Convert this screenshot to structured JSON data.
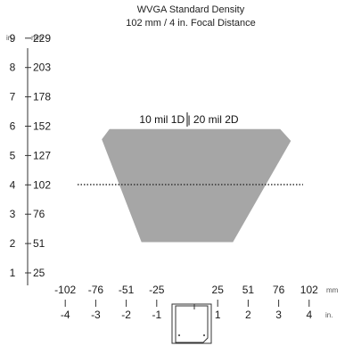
{
  "title": "WVGA Standard Density",
  "subtitle": "102 mm / 4 in. Focal Distance",
  "units": {
    "y_in": "in.",
    "y_mm": "mm",
    "x_mm": "mm",
    "x_in": "in."
  },
  "y_ticks": [
    {
      "in": "9",
      "mm": "229"
    },
    {
      "in": "8",
      "mm": "203"
    },
    {
      "in": "7",
      "mm": "178"
    },
    {
      "in": "6",
      "mm": "152"
    },
    {
      "in": "5",
      "mm": "127"
    },
    {
      "in": "4",
      "mm": "102"
    },
    {
      "in": "3",
      "mm": "76"
    },
    {
      "in": "2",
      "mm": "51"
    },
    {
      "in": "1",
      "mm": "25"
    }
  ],
  "x_ticks_mm": [
    "-102",
    "-76",
    "-51",
    "-25",
    "25",
    "51",
    "76",
    "102"
  ],
  "x_ticks_in": [
    "-4",
    "-3",
    "-2",
    "-1",
    "1",
    "2",
    "3",
    "4"
  ],
  "field_label": "10 mil 1D | 20 mil 2D",
  "colors": {
    "field": "#a6a6a6",
    "axis": "#333333",
    "focus_line": "#333333"
  },
  "chart_data": {
    "type": "area",
    "title": "WVGA Standard Density",
    "subtitle": "102 mm / 4 in. Focal Distance",
    "x_unit": "in.",
    "y_unit": "in.",
    "xlim": [
      -4,
      4
    ],
    "ylim": [
      1,
      9
    ],
    "series": [
      {
        "name": "10 mil 1D | 20 mil 2D",
        "polygon": [
          [
            -1.5,
            2.05
          ],
          [
            1.5,
            2.05
          ],
          [
            3.4,
            5.5
          ],
          [
            3.05,
            5.9
          ],
          [
            -2.55,
            5.9
          ],
          [
            -2.8,
            5.55
          ]
        ]
      }
    ],
    "focal_distance_in": 4,
    "focal_distance_mm": 102
  }
}
